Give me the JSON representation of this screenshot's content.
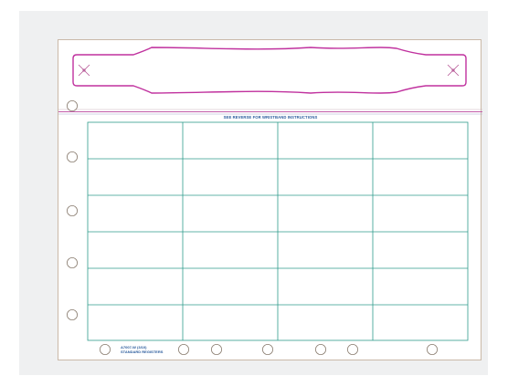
{
  "sheet": {
    "instructions": "SEE REVERSE FOR WRISTBAND INSTRUCTIONS",
    "form_code": "A7007-W (3/10)",
    "form_brand": "STANDARD REGISTERS"
  },
  "grid": {
    "columns": 4,
    "rows": 6
  },
  "colors": {
    "band_outline": "#c0319e",
    "grid_lines": "#2f9c8c",
    "perforation": "#c15aa8",
    "hole_outline": "#8a7d70",
    "sheet_border": "#cab9a8",
    "backdrop": "#eff0f1"
  }
}
